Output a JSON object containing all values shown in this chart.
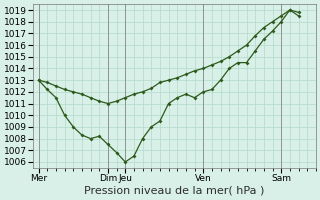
{
  "xlabel": "Pression niveau de la mer( hPa )",
  "ylim": [
    1005.5,
    1019.5
  ],
  "yticks": [
    1006,
    1007,
    1008,
    1009,
    1010,
    1011,
    1012,
    1013,
    1014,
    1015,
    1016,
    1017,
    1018,
    1019
  ],
  "bg_color": "#d8f0e8",
  "grid_color": "#b8ddd0",
  "line_color": "#2d5a1b",
  "vline_color": "#666666",
  "xlabel_fontsize": 8,
  "tick_fontsize": 6.5,
  "xtick_labels": [
    "Mer",
    "Dim",
    "Jeu",
    "Ven",
    "Sam"
  ],
  "xtick_positions": [
    0.0,
    4.0,
    5.0,
    9.5,
    14.0
  ],
  "vline_x": [
    0.0,
    4.0,
    5.0,
    9.5,
    14.0
  ],
  "xlim": [
    -0.3,
    15.5
  ],
  "series1_x": [
    0.0,
    0.5,
    1.0,
    1.5,
    2.0,
    2.5,
    3.0,
    3.5,
    4.0,
    4.5,
    5.0,
    5.5,
    6.0,
    6.5,
    7.0,
    7.5,
    8.0,
    8.5,
    9.0,
    9.5,
    10.0,
    10.5,
    11.0,
    11.5,
    12.0,
    12.5,
    13.0,
    13.5,
    14.0,
    14.5,
    15.0
  ],
  "series1_y": [
    1013.0,
    1012.8,
    1012.5,
    1012.2,
    1012.0,
    1011.8,
    1011.5,
    1011.2,
    1011.0,
    1011.2,
    1011.5,
    1011.8,
    1012.0,
    1012.3,
    1012.8,
    1013.0,
    1013.2,
    1013.5,
    1013.8,
    1014.0,
    1014.3,
    1014.6,
    1015.0,
    1015.5,
    1016.0,
    1016.8,
    1017.5,
    1018.0,
    1018.5,
    1019.0,
    1018.8
  ],
  "series2_x": [
    0.0,
    0.5,
    1.0,
    1.5,
    2.0,
    2.5,
    3.0,
    3.5,
    4.0,
    4.5,
    5.0,
    5.5,
    6.0,
    6.5,
    7.0,
    7.5,
    8.0,
    8.5,
    9.0,
    9.5,
    10.0,
    10.5,
    11.0,
    11.5,
    12.0,
    12.5,
    13.0,
    13.5,
    14.0,
    14.5,
    15.0
  ],
  "series2_y": [
    1013.0,
    1012.2,
    1011.5,
    1010.0,
    1009.0,
    1008.3,
    1008.0,
    1008.2,
    1007.5,
    1006.8,
    1006.0,
    1006.5,
    1008.0,
    1009.0,
    1009.5,
    1011.0,
    1011.5,
    1011.8,
    1011.5,
    1012.0,
    1012.2,
    1013.0,
    1014.0,
    1014.5,
    1014.5,
    1015.5,
    1016.5,
    1017.2,
    1018.0,
    1019.0,
    1018.5
  ]
}
